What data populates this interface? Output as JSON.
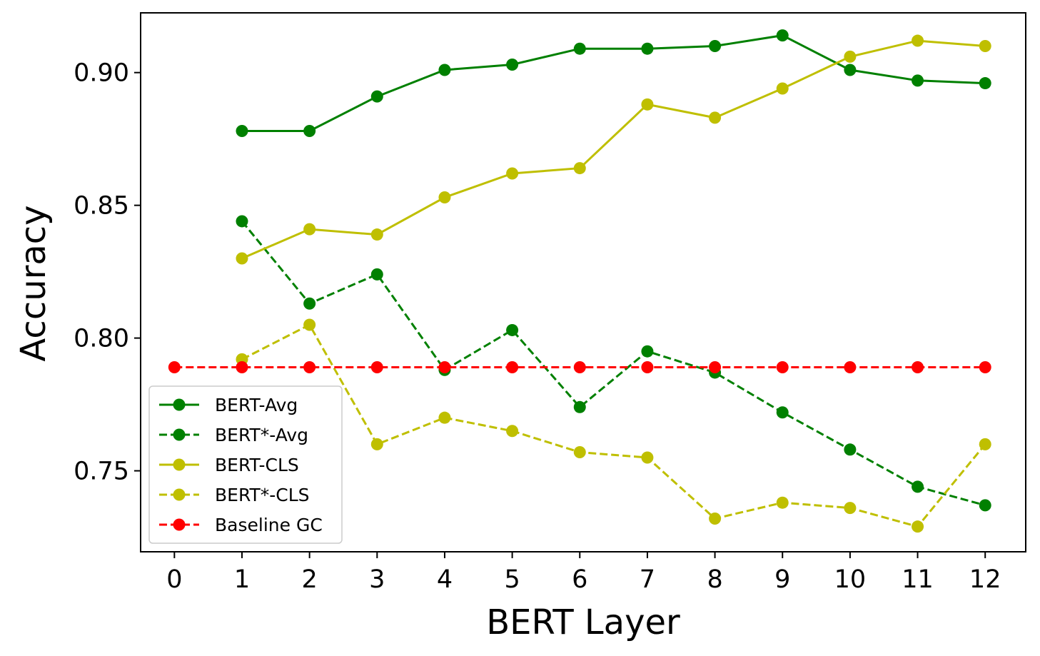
{
  "chart_data": {
    "type": "line",
    "xlabel": "BERT Layer",
    "ylabel": "Accuracy",
    "xlim": [
      -0.5,
      12.6
    ],
    "ylim": [
      0.7195,
      0.9225
    ],
    "x_ticks": [
      0,
      1,
      2,
      3,
      4,
      5,
      6,
      7,
      8,
      9,
      10,
      11,
      12
    ],
    "y_ticks": [
      0.75,
      0.8,
      0.85,
      0.9
    ],
    "y_tick_labels": [
      "0.75",
      "0.80",
      "0.85",
      "0.90"
    ],
    "grid": false,
    "legend_position": "lower-left",
    "series": [
      {
        "name": "BERT-Avg",
        "color": "#008000",
        "style": "solid",
        "x": [
          1,
          2,
          3,
          4,
          5,
          6,
          7,
          8,
          9,
          10,
          11,
          12
        ],
        "values": [
          0.878,
          0.878,
          0.891,
          0.901,
          0.903,
          0.909,
          0.909,
          0.91,
          0.914,
          0.901,
          0.897,
          0.896
        ]
      },
      {
        "name": "BERT*-Avg",
        "color": "#008000",
        "style": "dashed",
        "x": [
          1,
          2,
          3,
          4,
          5,
          6,
          7,
          8,
          9,
          10,
          11,
          12
        ],
        "values": [
          0.844,
          0.813,
          0.824,
          0.788,
          0.803,
          0.774,
          0.795,
          0.787,
          0.772,
          0.758,
          0.744,
          0.737
        ]
      },
      {
        "name": "BERT-CLS",
        "color": "#bfbf00",
        "style": "solid",
        "x": [
          1,
          2,
          3,
          4,
          5,
          6,
          7,
          8,
          9,
          10,
          11,
          12
        ],
        "values": [
          0.83,
          0.841,
          0.839,
          0.853,
          0.862,
          0.864,
          0.888,
          0.883,
          0.894,
          0.906,
          0.912,
          0.91
        ]
      },
      {
        "name": "BERT*-CLS",
        "color": "#bfbf00",
        "style": "dashed",
        "x": [
          1,
          2,
          3,
          4,
          5,
          6,
          7,
          8,
          9,
          10,
          11,
          12
        ],
        "values": [
          0.792,
          0.805,
          0.76,
          0.77,
          0.765,
          0.757,
          0.755,
          0.732,
          0.738,
          0.736,
          0.729,
          0.76
        ]
      },
      {
        "name": "Baseline GC",
        "color": "#ff0000",
        "style": "dashed",
        "x": [
          0,
          1,
          2,
          3,
          4,
          5,
          6,
          7,
          8,
          9,
          10,
          11,
          12
        ],
        "values": [
          0.789,
          0.789,
          0.789,
          0.789,
          0.789,
          0.789,
          0.789,
          0.789,
          0.789,
          0.789,
          0.789,
          0.789,
          0.789
        ]
      }
    ]
  }
}
